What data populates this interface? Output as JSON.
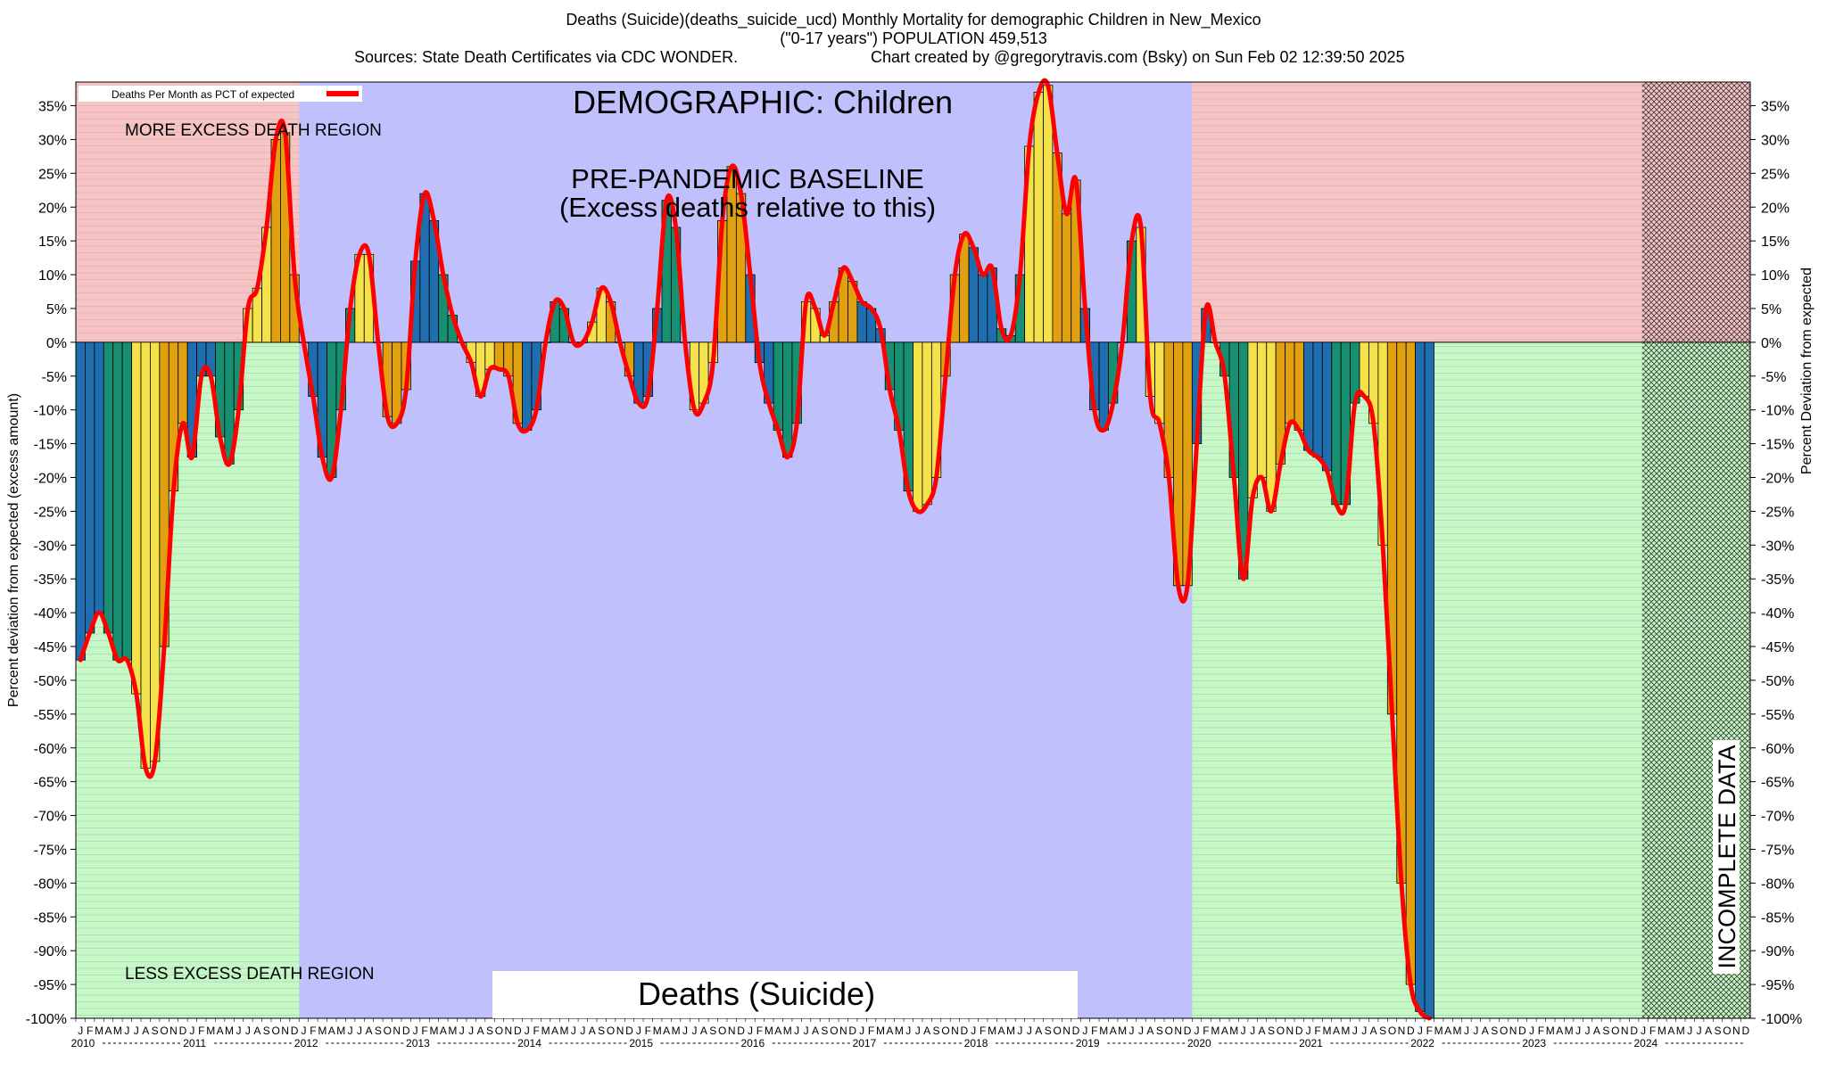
{
  "header": {
    "line1": "Deaths (Suicide)(deaths_suicide_ucd) Monthly Mortality for demographic Children in New_Mexico",
    "line2": "(\"0-17 years\") POPULATION 459,513",
    "sources": "Sources: State Death Certificates via CDC WONDER.",
    "credit": "Chart created by @gregorytravis.com (Bsky) on Sun Feb 02 12:39:50 2025"
  },
  "chart_data": {
    "type": "bar",
    "title": "DEMOGRAPHIC: Children",
    "subtitle": "Deaths (Suicide)",
    "ylabel_left": "Percent deviation from expected (excess amount)",
    "ylabel_right": "Percent Deviation from expected",
    "legend": "Deaths Per Month as PCT of expected",
    "legend_placement": "top-left",
    "grid": true,
    "ylim": [
      -100,
      38.5
    ],
    "yticks": [
      35,
      30,
      25,
      20,
      15,
      10,
      5,
      0,
      -5,
      -10,
      -15,
      -20,
      -25,
      -30,
      -35,
      -40,
      -45,
      -50,
      -55,
      -60,
      -65,
      -70,
      -75,
      -80,
      -85,
      -90,
      -95,
      -100
    ],
    "month_letters": [
      "J",
      "F",
      "M",
      "A",
      "M",
      "J",
      "J",
      "A",
      "S",
      "O",
      "N",
      "D"
    ],
    "years": [
      "2010",
      "2011",
      "2012",
      "2013",
      "2014",
      "2015",
      "2016",
      "2017",
      "2018",
      "2019",
      "2020",
      "2021",
      "2022",
      "2023",
      "2024"
    ],
    "x_start": "2010-01",
    "baseline_years": [
      "2012",
      "2019"
    ],
    "incomplete_from": "2024-03",
    "bar_colors": [
      "#1f6fb0",
      "#179071",
      "#f5e24a",
      "#e0a010"
    ],
    "line_color": "#ff0000",
    "values": [
      -47,
      -43,
      -40,
      -43,
      -47,
      -47,
      -52,
      -63,
      -62,
      -45,
      -22,
      -12,
      -17,
      -5,
      -5,
      -14,
      -18,
      -10,
      5,
      8,
      17,
      30,
      31,
      10,
      0,
      -8,
      -17,
      -20,
      -10,
      5,
      13,
      13,
      0,
      -11,
      -12,
      -7,
      12,
      22,
      18,
      10,
      4,
      0,
      -3,
      -8,
      -4,
      -4,
      -5,
      -12,
      -13,
      -10,
      0,
      6,
      5,
      0,
      0,
      3,
      8,
      6,
      0,
      -5,
      -9,
      -8,
      5,
      21,
      17,
      0,
      -10,
      -9,
      -3,
      18,
      26,
      22,
      10,
      -3,
      -9,
      -13,
      -17,
      -12,
      6,
      5,
      1,
      6,
      11,
      9,
      6,
      5,
      2,
      -7,
      -13,
      -22,
      -25,
      -24,
      -20,
      -5,
      10,
      16,
      14,
      10,
      11,
      2,
      1,
      10,
      29,
      37,
      38,
      28,
      19,
      24,
      5,
      -10,
      -13,
      -9,
      0,
      15,
      17,
      -8,
      -12,
      -20,
      -36,
      -36,
      -15,
      5,
      0,
      -5,
      -20,
      -35,
      -23,
      -20,
      -25,
      -18,
      -12,
      -13,
      -16,
      -17,
      -19,
      -24,
      -24,
      -9,
      -8,
      -12,
      -30,
      -55,
      -80,
      -95,
      -99,
      -100
    ],
    "annotations": {
      "baseline_line1": "PRE-PANDEMIC BASELINE",
      "baseline_line2": "(Excess deaths relative to this)",
      "more_region": "MORE EXCESS DEATH REGION",
      "less_region": "LESS EXCESS DEATH REGION",
      "incomplete": "INCOMPLETE DATA"
    }
  }
}
